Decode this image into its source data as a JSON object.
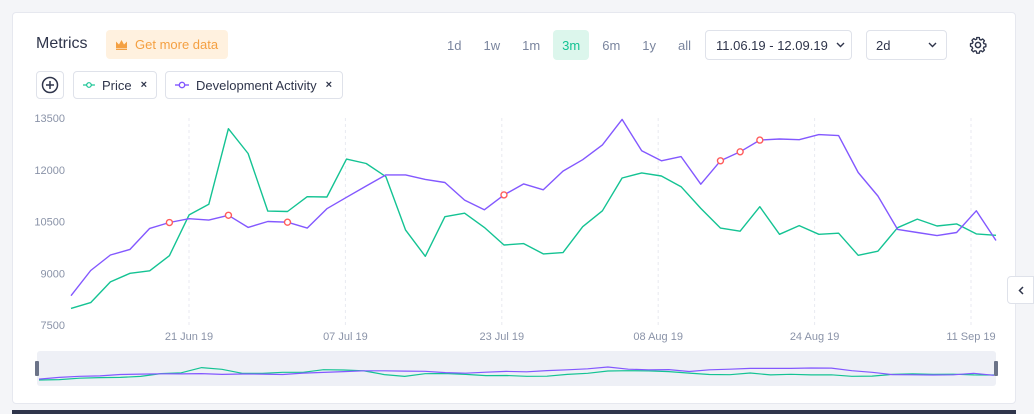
{
  "header": {
    "title": "Metrics",
    "get_more_label": "Get more data",
    "ranges": [
      "1d",
      "1w",
      "1m",
      "3m",
      "6m",
      "1y",
      "all"
    ],
    "active_range": "3m",
    "date_range": "11.06.19 - 12.09.19",
    "interval": "2d"
  },
  "chips": {
    "price_label": "Price",
    "dev_label": "Development Activity",
    "remove_glyph": "×"
  },
  "icons": {
    "crown": "crown-icon",
    "settings": "gear-icon",
    "add": "plus-circle-icon",
    "chevron_down": "chevron-down-icon",
    "collapse": "chevron-left-icon"
  },
  "colors": {
    "price": "#14c393",
    "dev": "#8358ff",
    "marker": "#ff5b5b",
    "accent": "#14c393",
    "upgrade": "#f4a042"
  },
  "chart_data": {
    "type": "line",
    "x_tick_labels": [
      "21 Jun 19",
      "07 Jul 19",
      "23 Jul 19",
      "08 Aug 19",
      "24 Aug 19",
      "11 Sep 19"
    ],
    "y_tick_labels": [
      "13500",
      "12000",
      "10500",
      "9000",
      "7500"
    ],
    "ylim": [
      7500,
      13500
    ],
    "grid": "vertical dashed",
    "series": [
      {
        "name": "Price",
        "color": "#14c393",
        "values": [
          7980,
          8150,
          8750,
          9000,
          9070,
          9510,
          10690,
          11000,
          13190,
          12470,
          10800,
          10790,
          11220,
          11210,
          12310,
          12180,
          11800,
          10250,
          9490,
          10640,
          10740,
          10330,
          9820,
          9860,
          9560,
          9600,
          10350,
          10810,
          11760,
          11910,
          11820,
          11510,
          10880,
          10310,
          10220,
          10930,
          10130,
          10380,
          10130,
          10160,
          9520,
          9640,
          10320,
          10570,
          10370,
          10430,
          10140,
          10100
        ]
      },
      {
        "name": "Development Activity",
        "color": "#8358ff",
        "values": [
          8350,
          9080,
          9530,
          9690,
          10300,
          10470,
          10580,
          10540,
          10680,
          10330,
          10500,
          10480,
          10310,
          10870,
          11200,
          11530,
          11850,
          11850,
          11720,
          11630,
          11120,
          10840,
          11270,
          11590,
          11420,
          11960,
          12290,
          12720,
          13460,
          12550,
          12260,
          12380,
          11580,
          12260,
          12520,
          12860,
          12890,
          12870,
          13020,
          12990,
          11920,
          11240,
          10270,
          10180,
          10090,
          10180,
          10810,
          9950
        ]
      }
    ],
    "markers": [
      {
        "series": "Development Activity",
        "index": 5
      },
      {
        "series": "Development Activity",
        "index": 8
      },
      {
        "series": "Development Activity",
        "index": 11
      },
      {
        "series": "Development Activity",
        "index": 22
      },
      {
        "series": "Development Activity",
        "index": 33
      },
      {
        "series": "Development Activity",
        "index": 34
      },
      {
        "series": "Development Activity",
        "index": 35
      }
    ]
  }
}
